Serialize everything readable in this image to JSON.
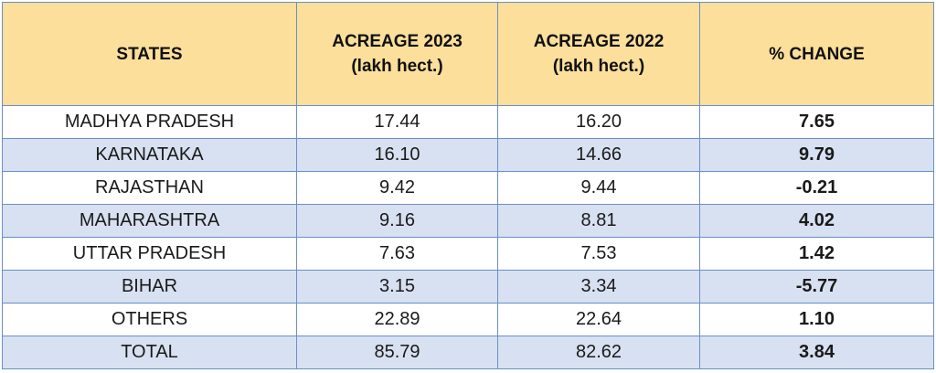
{
  "header": {
    "states": "STATES",
    "acreage_2023_line1": "ACREAGE 2023",
    "acreage_2023_line2": "(lakh hect.)",
    "acreage_2022_line1": "ACREAGE 2022",
    "acreage_2022_line2": "(lakh hect.)",
    "change": "% CHANGE"
  },
  "rows": [
    {
      "state": "MADHYA PRADESH",
      "a2023": "17.44",
      "a2022": "16.20",
      "change": "7.65",
      "dir": "pos"
    },
    {
      "state": "KARNATAKA",
      "a2023": "16.10",
      "a2022": "14.66",
      "change": "9.79",
      "dir": "pos"
    },
    {
      "state": "RAJASTHAN",
      "a2023": "9.42",
      "a2022": "9.44",
      "change": "-0.21",
      "dir": "neg"
    },
    {
      "state": "MAHARASHTRA",
      "a2023": "9.16",
      "a2022": "8.81",
      "change": "4.02",
      "dir": "pos"
    },
    {
      "state": "UTTAR PRADESH",
      "a2023": "7.63",
      "a2022": "7.53",
      "change": "1.42",
      "dir": "pos"
    },
    {
      "state": "BIHAR",
      "a2023": "3.15",
      "a2022": "3.34",
      "change": "-5.77",
      "dir": "neg"
    },
    {
      "state": "OTHERS",
      "a2023": "22.89",
      "a2022": "22.64",
      "change": "1.10",
      "dir": "pos"
    },
    {
      "state": "TOTAL",
      "a2023": "85.79",
      "a2022": "82.62",
      "change": "3.84",
      "dir": "pos"
    }
  ],
  "colors": {
    "header_bg": "#fbdf9b",
    "row_shade": "#d8e1f1",
    "border": "#6a8fc8",
    "positive": "#1fa84f",
    "negative": "#e01b1b"
  }
}
